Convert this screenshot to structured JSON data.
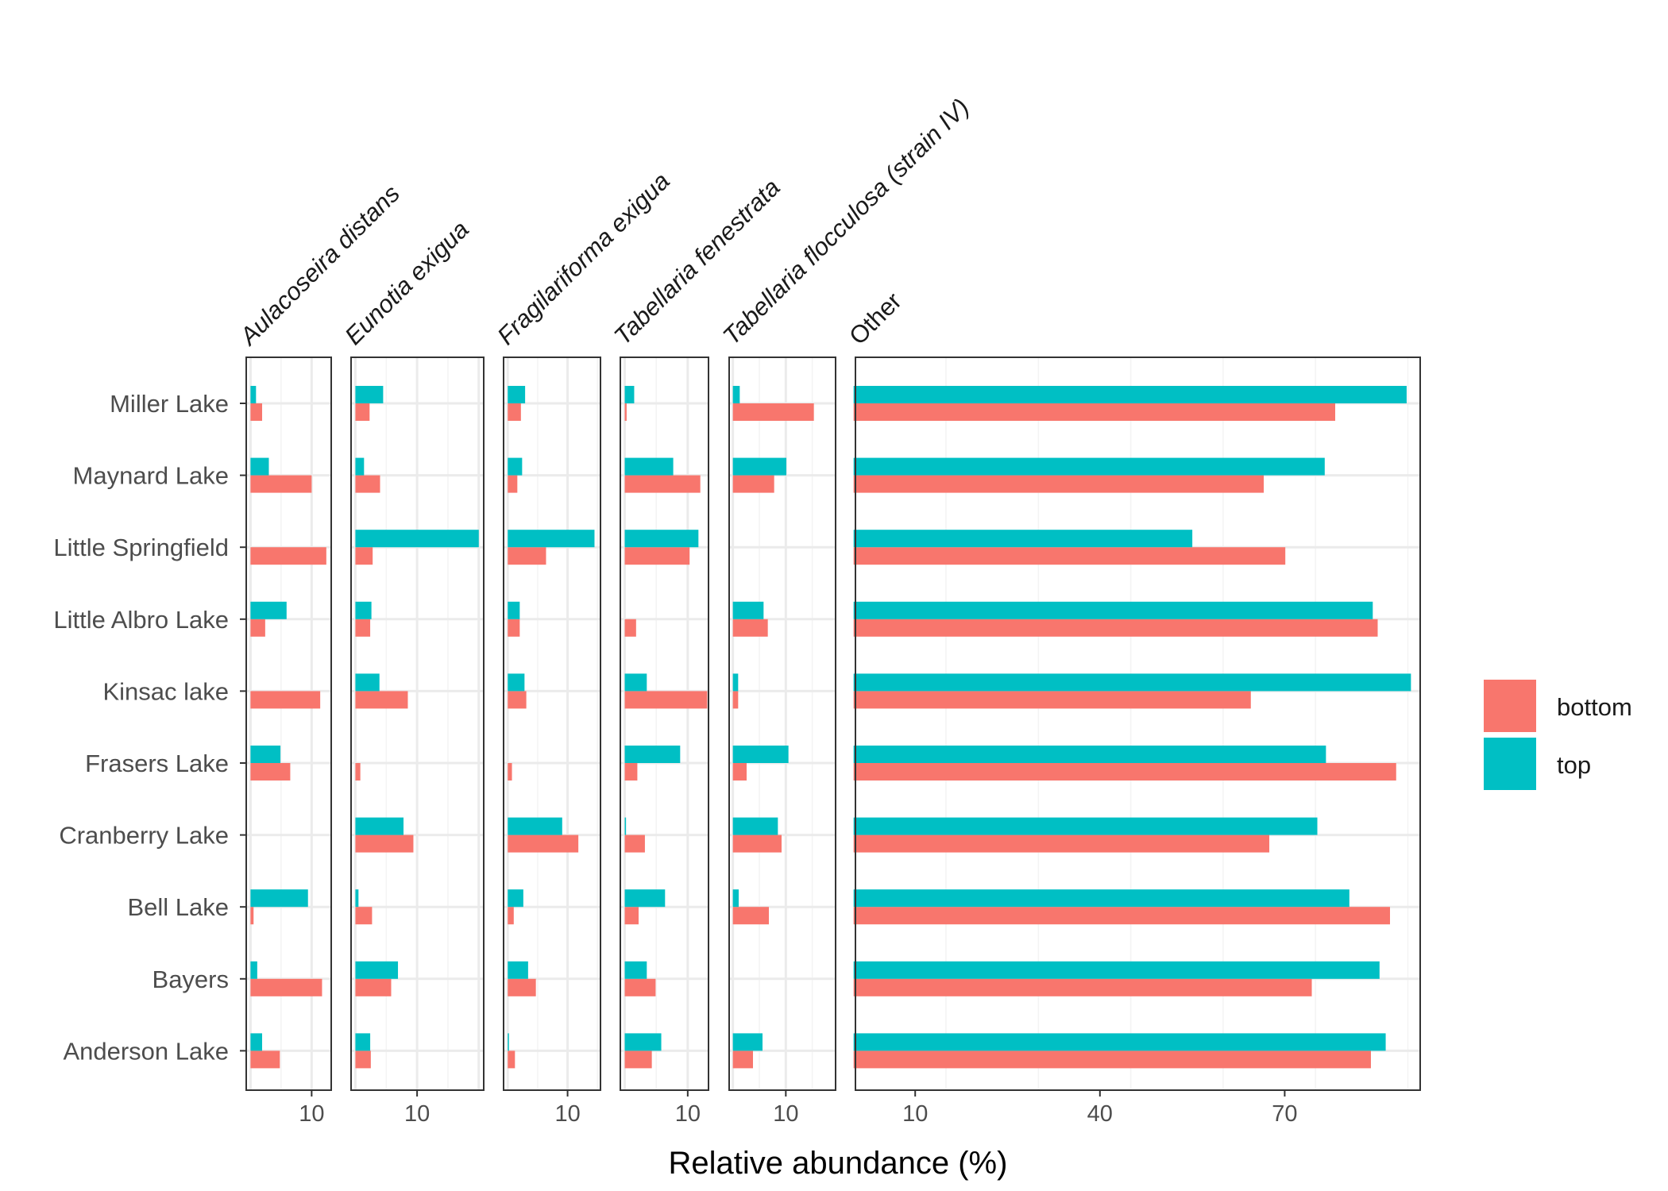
{
  "chart_data": {
    "type": "bar",
    "orientation": "horizontal",
    "facets": [
      "Aulacoseira distans",
      "Eunotia exigua",
      "Fragilariforma exigua",
      "Tabellaria fenestrata",
      "Tabellaria flocculosa (strain IV)",
      "Other"
    ],
    "italic_facets": [
      true,
      true,
      true,
      true,
      true,
      false
    ],
    "categories": [
      "Anderson Lake",
      "Bayers",
      "Bell Lake",
      "Cranberry Lake",
      "Frasers Lake",
      "Kinsac lake",
      "Little Albro Lake",
      "Little Springfield",
      "Maynard Lake",
      "Miller Lake"
    ],
    "xlabel": "Relative abundance (%)",
    "ylabel": "",
    "legend": {
      "position": "right",
      "entries": [
        "bottom",
        "top"
      ]
    },
    "colors": {
      "bottom": "#F8766D",
      "top": "#00BFC4"
    },
    "tick_labels": [
      [
        "10"
      ],
      [
        "10"
      ],
      [
        "10"
      ],
      [
        "10"
      ],
      [
        "10"
      ],
      [
        "10",
        "40",
        "70"
      ]
    ],
    "tick_values": [
      [
        10
      ],
      [
        10
      ],
      [
        10
      ],
      [
        10
      ],
      [
        10
      ],
      [
        10,
        40,
        70
      ]
    ],
    "xlim": [
      [
        -0.7,
        13.2
      ],
      [
        -0.7,
        20.8
      ],
      [
        -0.7,
        15.5
      ],
      [
        -0.7,
        13.3
      ],
      [
        -0.7,
        19.4
      ],
      [
        0.3,
        92.0
      ]
    ],
    "series": [
      {
        "name": "bottom",
        "values": [
          [
            4.8,
            11.7,
            0.5,
            0,
            6.5,
            11.4,
            2.4,
            12.4,
            10.0,
            1.9
          ],
          [
            2.5,
            5.8,
            2.7,
            9.4,
            0.8,
            8.5,
            2.4,
            2.8,
            4.0,
            2.3
          ],
          [
            1.2,
            4.7,
            1.0,
            11.8,
            0.7,
            3.1,
            2.0,
            6.4,
            1.6,
            2.2
          ],
          [
            4.3,
            4.9,
            2.2,
            3.2,
            2.0,
            13.1,
            1.8,
            10.3,
            12.0,
            0.3
          ],
          [
            3.8,
            0,
            6.8,
            9.2,
            2.6,
            1.0,
            6.6,
            0,
            7.8,
            15.3
          ],
          [
            84.0,
            74.4,
            87.1,
            67.5,
            88.1,
            64.5,
            85.1,
            70.1,
            66.6,
            78.2
          ]
        ]
      },
      {
        "name": "top",
        "values": [
          [
            1.9,
            1.1,
            9.4,
            0,
            4.9,
            0,
            5.9,
            0,
            3.0,
            0.9
          ],
          [
            2.4,
            6.9,
            0.5,
            7.8,
            0,
            3.9,
            2.6,
            20.0,
            1.4,
            4.5
          ],
          [
            0.2,
            3.4,
            2.6,
            9.1,
            0,
            2.8,
            2.0,
            14.5,
            2.4,
            2.9
          ],
          [
            5.8,
            3.5,
            6.4,
            0.2,
            8.8,
            3.5,
            0,
            11.7,
            7.7,
            1.5
          ],
          [
            5.6,
            0,
            1.1,
            8.5,
            10.5,
            1.0,
            5.8,
            0,
            10.1,
            1.3
          ],
          [
            86.4,
            85.4,
            80.5,
            75.3,
            76.7,
            90.5,
            84.3,
            55.0,
            76.5,
            89.8
          ]
        ]
      }
    ]
  }
}
